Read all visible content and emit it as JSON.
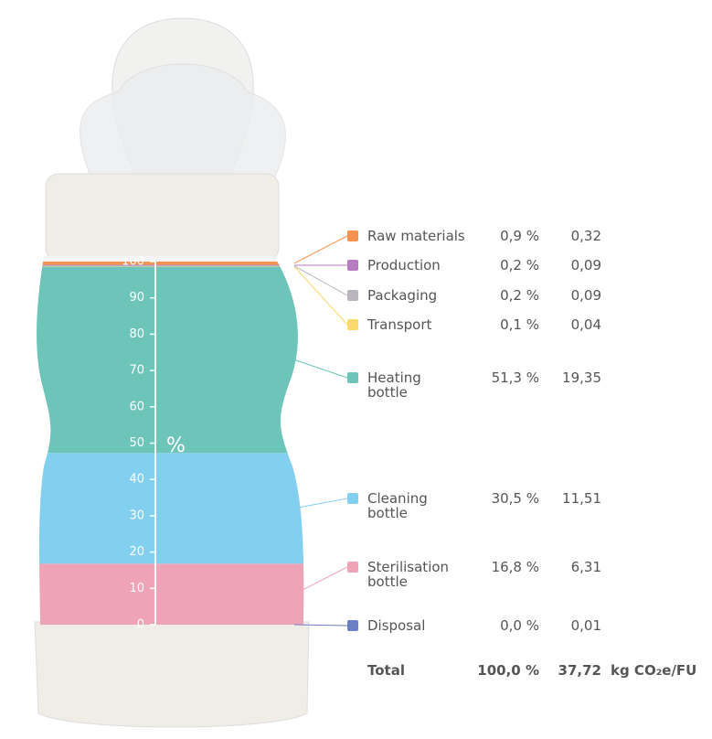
{
  "chart_data": {
    "type": "stacked-bar",
    "ylabel": "%",
    "ylim": [
      0,
      100
    ],
    "yticks": [
      0,
      10,
      20,
      30,
      40,
      50,
      60,
      70,
      80,
      90,
      100
    ],
    "series": [
      {
        "name": "Disposal",
        "color": "#6b7fc4",
        "values": [
          0.0
        ],
        "value_labels": [
          "0,0 %"
        ],
        "emissions": 0.01,
        "emissions_label": "0,01"
      },
      {
        "name": "Sterilisation bottle",
        "color": "#eea3b7",
        "values": [
          16.8
        ],
        "value_labels": [
          "16,8 %"
        ],
        "emissions": 6.31,
        "emissions_label": "6,31"
      },
      {
        "name": "Cleaning bottle",
        "color": "#83cff0",
        "values": [
          30.5
        ],
        "value_labels": [
          "30,5 %"
        ],
        "emissions": 11.51,
        "emissions_label": "11,51"
      },
      {
        "name": "Heating bottle",
        "color": "#6cc5b8",
        "values": [
          51.3
        ],
        "value_labels": [
          "51,3 %"
        ],
        "emissions": 19.35,
        "emissions_label": "19,35"
      },
      {
        "name": "Transport",
        "color": "#fcd96b",
        "values": [
          0.1
        ],
        "value_labels": [
          "0,1 %"
        ],
        "emissions": 0.04,
        "emissions_label": "0,04"
      },
      {
        "name": "Packaging",
        "color": "#b9b4bd",
        "values": [
          0.2
        ],
        "value_labels": [
          "0,2 %"
        ],
        "emissions": 0.09,
        "emissions_label": "0,09"
      },
      {
        "name": "Production",
        "color": "#b77bc1",
        "values": [
          0.2
        ],
        "value_labels": [
          "0,2 %"
        ],
        "emissions": 0.09,
        "emissions_label": "0,09"
      },
      {
        "name": "Raw materials",
        "color": "#f5924f",
        "values": [
          0.9
        ],
        "value_labels": [
          "0,9 %"
        ],
        "emissions": 0.32,
        "emissions_label": "0,32"
      }
    ],
    "total": {
      "label": "Total",
      "percent": 100.0,
      "percent_label": "100,0 %",
      "emissions": 37.72,
      "emissions_label": "37,72",
      "unit": "kg CO₂e/FU"
    }
  }
}
